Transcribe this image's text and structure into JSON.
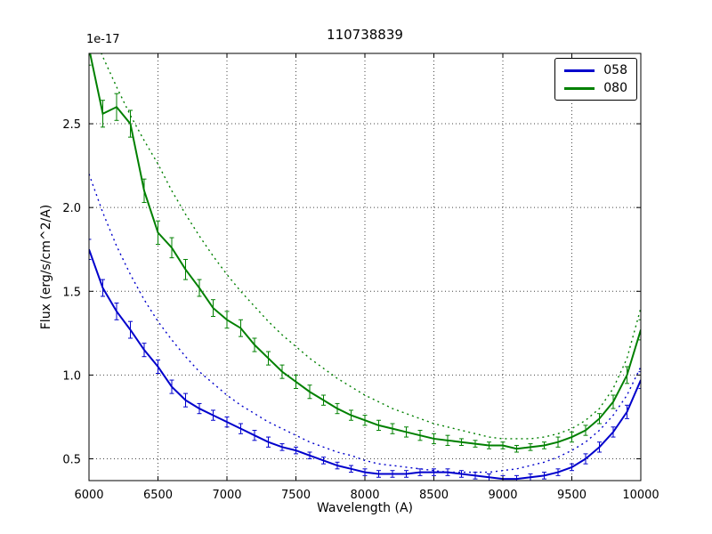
{
  "figure": {
    "title": "110738839",
    "offset_label": "1e-17",
    "xlabel": "Wavelength (A)",
    "ylabel": "Flux (erg/s/cm^2/A)"
  },
  "legend": {
    "entries": [
      {
        "label": "058",
        "color": "#0000cc"
      },
      {
        "label": "080",
        "color": "#008000"
      }
    ]
  },
  "chart_data": {
    "type": "line",
    "title": "110738839",
    "xlabel": "Wavelength (A)",
    "ylabel": "Flux (erg/s/cm^2/A)",
    "y_offset_factor": "1e-17",
    "xlim": [
      6000,
      10000
    ],
    "ylim": [
      0.37,
      2.92
    ],
    "xticks": [
      6000,
      6500,
      7000,
      7500,
      8000,
      8500,
      9000,
      9500,
      10000
    ],
    "xtick_labels": [
      "6000",
      "6500",
      "7000",
      "7500",
      "8000",
      "8500",
      "9000",
      "9500",
      "10000"
    ],
    "yticks": [
      0.5,
      1.0,
      1.5,
      2.0,
      2.5
    ],
    "ytick_labels": [
      "0.5",
      "1.0",
      "1.5",
      "2.0",
      "2.5"
    ],
    "grid": true,
    "legend_position": "upper right",
    "x": [
      6000,
      6100,
      6200,
      6300,
      6400,
      6500,
      6600,
      6700,
      6800,
      6900,
      7000,
      7100,
      7200,
      7300,
      7400,
      7500,
      7600,
      7700,
      7800,
      7900,
      8000,
      8100,
      8200,
      8300,
      8400,
      8500,
      8600,
      8700,
      8800,
      8900,
      9000,
      9100,
      9200,
      9300,
      9400,
      9500,
      9600,
      9700,
      9800,
      9900,
      10000
    ],
    "series": [
      {
        "name": "058 model",
        "style": "dotted",
        "color": "#0000cc",
        "values": [
          2.2,
          1.97,
          1.77,
          1.6,
          1.45,
          1.32,
          1.21,
          1.11,
          1.02,
          0.95,
          0.88,
          0.82,
          0.77,
          0.72,
          0.68,
          0.64,
          0.6,
          0.57,
          0.54,
          0.52,
          0.49,
          0.47,
          0.46,
          0.45,
          0.44,
          0.43,
          0.42,
          0.42,
          0.42,
          0.42,
          0.43,
          0.44,
          0.46,
          0.48,
          0.51,
          0.55,
          0.6,
          0.67,
          0.76,
          0.88,
          1.05
        ]
      },
      {
        "name": "080 model",
        "style": "dotted",
        "color": "#008000",
        "values": [
          3.1,
          2.9,
          2.72,
          2.55,
          2.4,
          2.26,
          2.1,
          1.96,
          1.83,
          1.71,
          1.6,
          1.5,
          1.41,
          1.32,
          1.24,
          1.17,
          1.1,
          1.04,
          0.98,
          0.93,
          0.88,
          0.84,
          0.8,
          0.77,
          0.74,
          0.71,
          0.69,
          0.67,
          0.65,
          0.63,
          0.62,
          0.62,
          0.62,
          0.63,
          0.65,
          0.68,
          0.73,
          0.8,
          0.92,
          1.1,
          1.4
        ]
      },
      {
        "name": "058",
        "style": "solid_errorbar",
        "color": "#0000cc",
        "values": [
          1.75,
          1.52,
          1.38,
          1.27,
          1.15,
          1.05,
          0.93,
          0.85,
          0.8,
          0.76,
          0.72,
          0.68,
          0.64,
          0.6,
          0.57,
          0.55,
          0.52,
          0.49,
          0.46,
          0.44,
          0.42,
          0.41,
          0.41,
          0.41,
          0.42,
          0.42,
          0.42,
          0.41,
          0.4,
          0.39,
          0.38,
          0.38,
          0.39,
          0.4,
          0.42,
          0.45,
          0.5,
          0.57,
          0.66,
          0.78,
          0.97
        ],
        "errors": [
          0.06,
          0.05,
          0.05,
          0.05,
          0.04,
          0.04,
          0.04,
          0.04,
          0.03,
          0.03,
          0.03,
          0.03,
          0.03,
          0.03,
          0.02,
          0.02,
          0.02,
          0.02,
          0.02,
          0.02,
          0.02,
          0.02,
          0.02,
          0.02,
          0.02,
          0.02,
          0.02,
          0.02,
          0.02,
          0.02,
          0.02,
          0.02,
          0.02,
          0.02,
          0.02,
          0.02,
          0.03,
          0.03,
          0.03,
          0.04,
          0.05
        ]
      },
      {
        "name": "080",
        "style": "solid_errorbar",
        "color": "#008000",
        "values": [
          2.95,
          2.56,
          2.6,
          2.5,
          2.1,
          1.85,
          1.76,
          1.63,
          1.52,
          1.4,
          1.33,
          1.28,
          1.18,
          1.1,
          1.02,
          0.96,
          0.9,
          0.85,
          0.8,
          0.76,
          0.73,
          0.7,
          0.68,
          0.66,
          0.64,
          0.62,
          0.61,
          0.6,
          0.59,
          0.58,
          0.58,
          0.56,
          0.57,
          0.58,
          0.6,
          0.63,
          0.67,
          0.74,
          0.84,
          1.0,
          1.27
        ],
        "errors": [
          0.1,
          0.08,
          0.08,
          0.08,
          0.07,
          0.07,
          0.06,
          0.06,
          0.05,
          0.05,
          0.05,
          0.05,
          0.04,
          0.04,
          0.04,
          0.04,
          0.04,
          0.03,
          0.03,
          0.03,
          0.03,
          0.03,
          0.03,
          0.03,
          0.03,
          0.03,
          0.03,
          0.02,
          0.02,
          0.02,
          0.02,
          0.02,
          0.02,
          0.02,
          0.03,
          0.03,
          0.03,
          0.03,
          0.04,
          0.05,
          0.06
        ]
      }
    ]
  }
}
